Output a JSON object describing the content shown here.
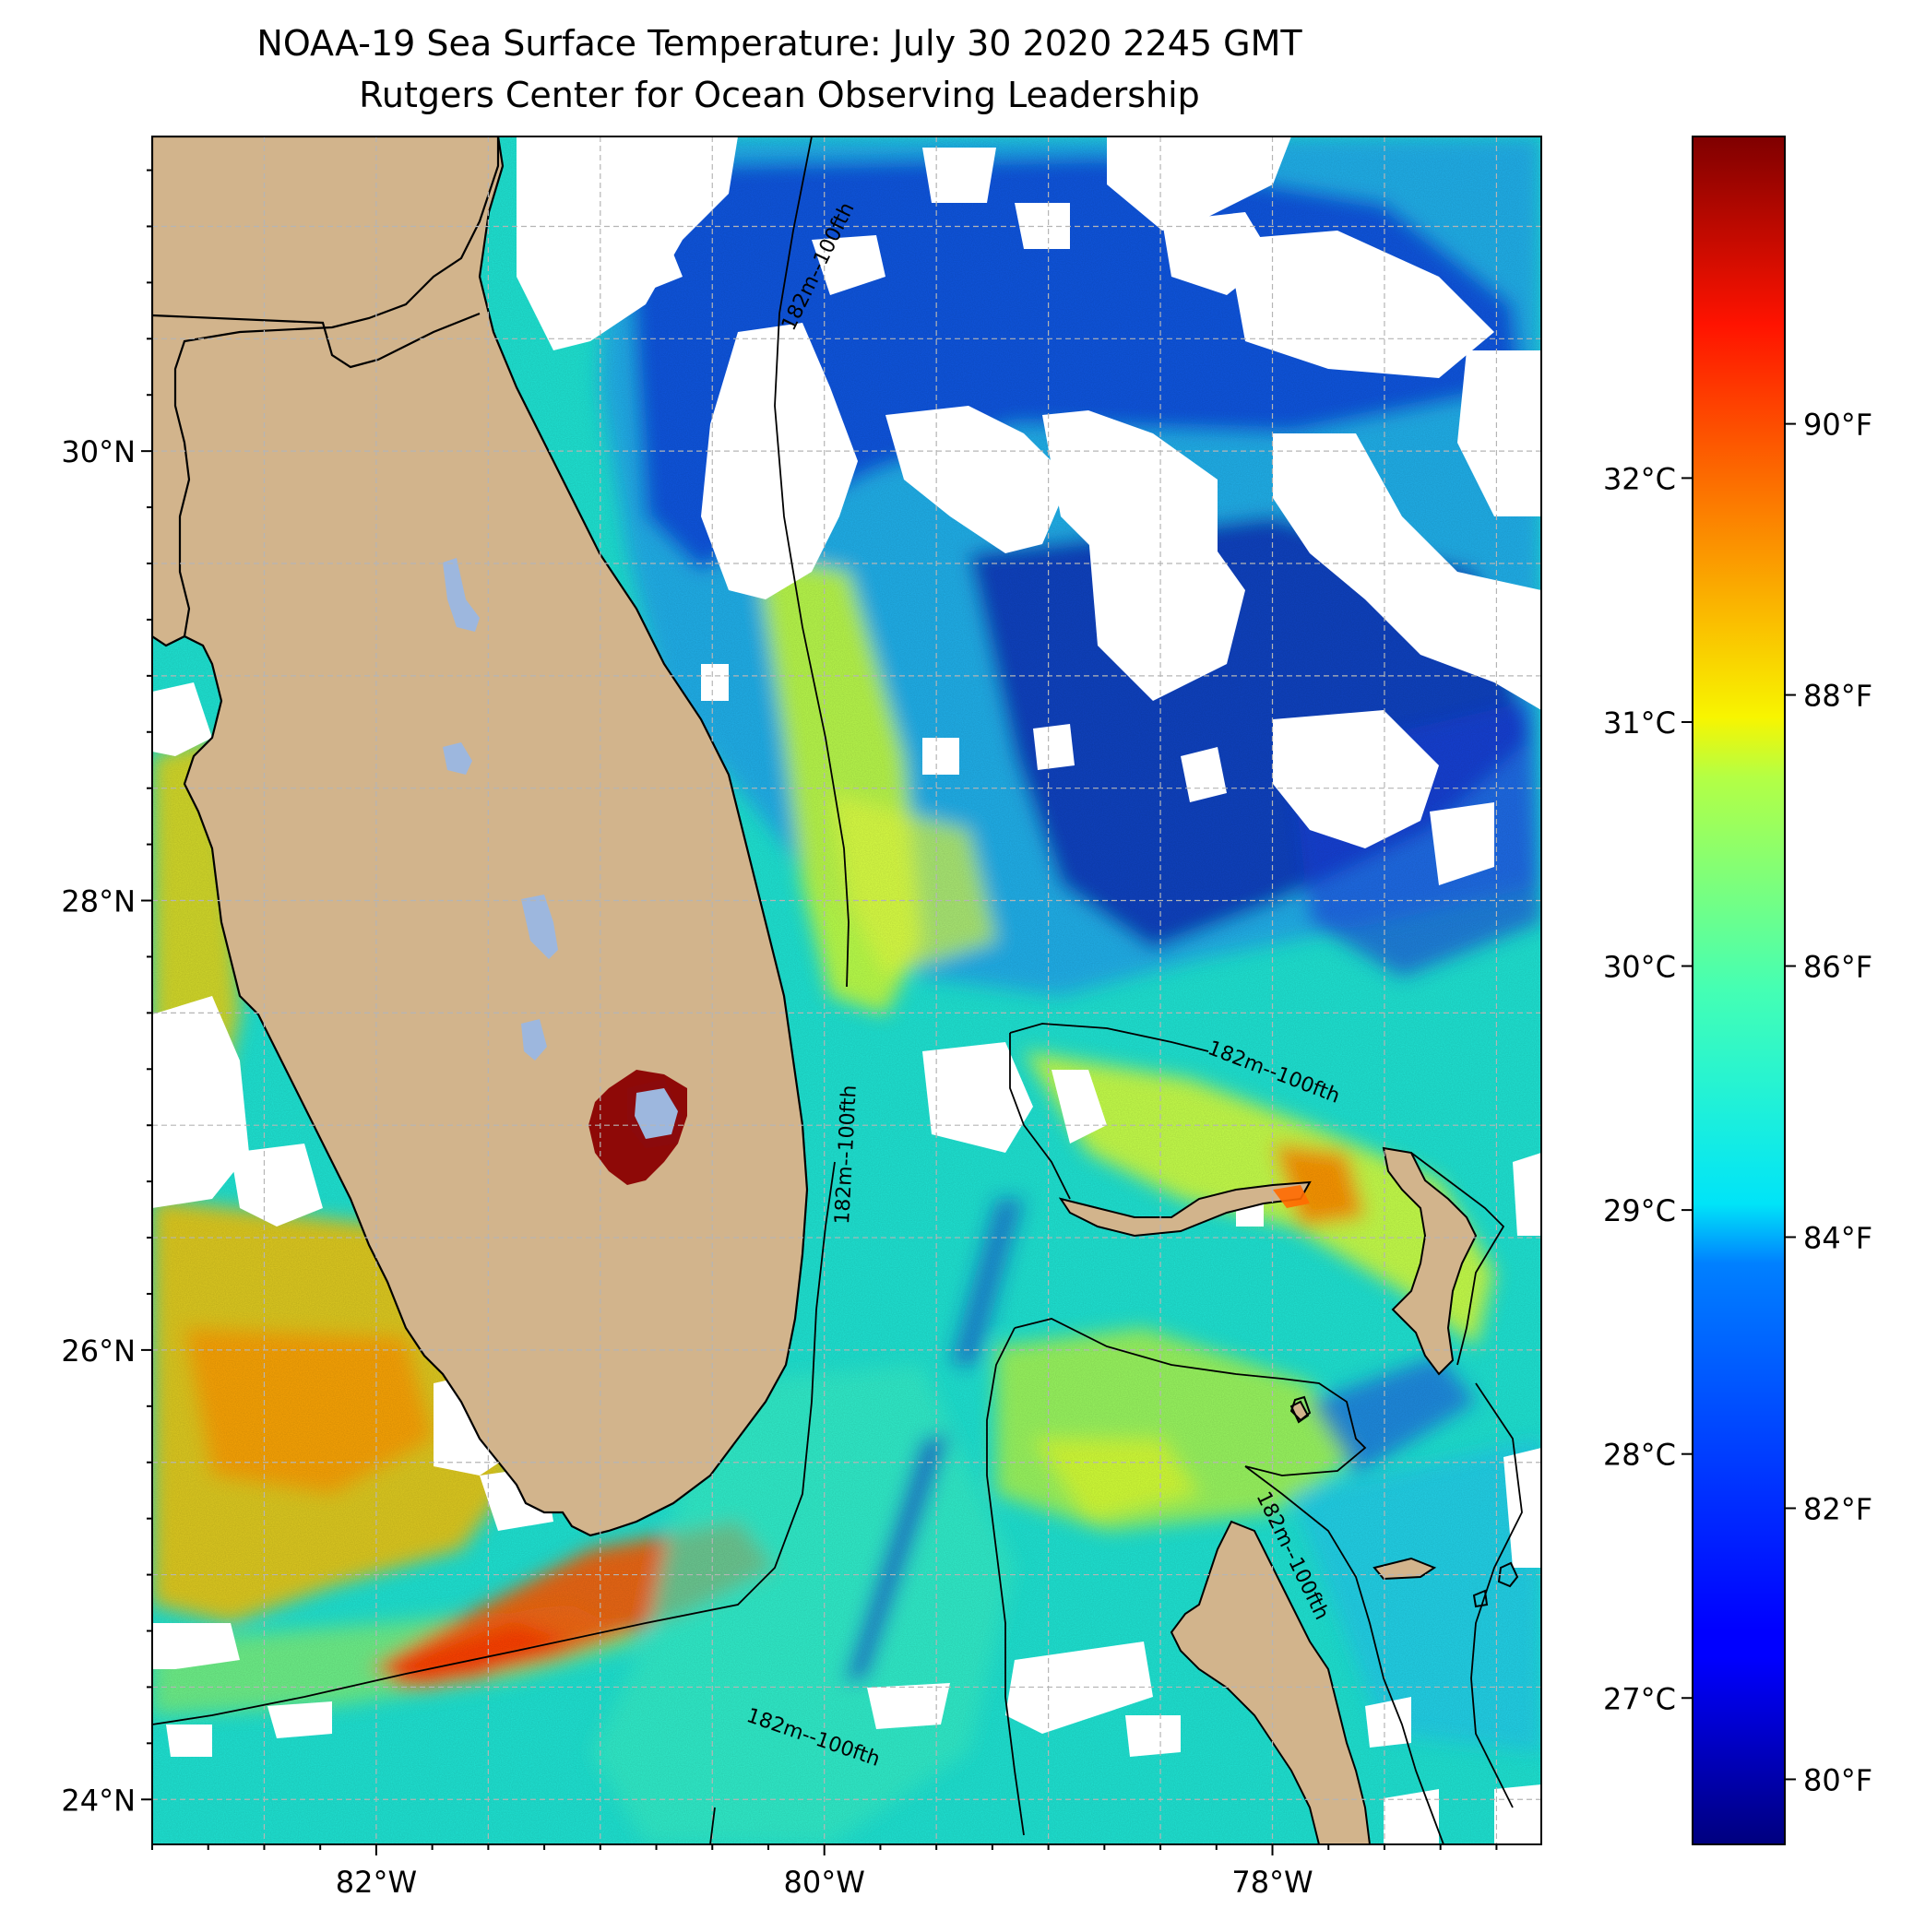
{
  "title": {
    "line1": "NOAA-19 Sea Surface Temperature: July 30 2020 2245 GMT",
    "line2": "Rutgers Center for Ocean Observing Leadership"
  },
  "map": {
    "lon_range": [
      -83.0,
      -76.8
    ],
    "lat_range": [
      23.8,
      31.4
    ],
    "lat_ticks": [
      "30°N",
      "28°N",
      "26°N",
      "24°N"
    ],
    "lat_tick_values": [
      30,
      28,
      26,
      24
    ],
    "lon_ticks": [
      "82°W",
      "80°W",
      "78°W"
    ],
    "lon_tick_values": [
      -82,
      -80,
      -78
    ],
    "grid": true,
    "contour_label": "182m--100fth",
    "land_color": "#d2b48c",
    "lake_color": "#9db7de",
    "cloud_color": "#ffffff"
  },
  "colorbar": {
    "colormap": "jet",
    "value_range_c": [
      26.4,
      33.4
    ],
    "celsius_ticks": [
      "27°C",
      "28°C",
      "29°C",
      "30°C",
      "31°C",
      "32°C"
    ],
    "celsius_values": [
      27,
      28,
      29,
      30,
      31,
      32
    ],
    "fahrenheit_ticks": [
      "80°F",
      "82°F",
      "84°F",
      "86°F",
      "88°F",
      "90°F"
    ],
    "fahrenheit_values": [
      80,
      82,
      84,
      86,
      88,
      90
    ]
  }
}
